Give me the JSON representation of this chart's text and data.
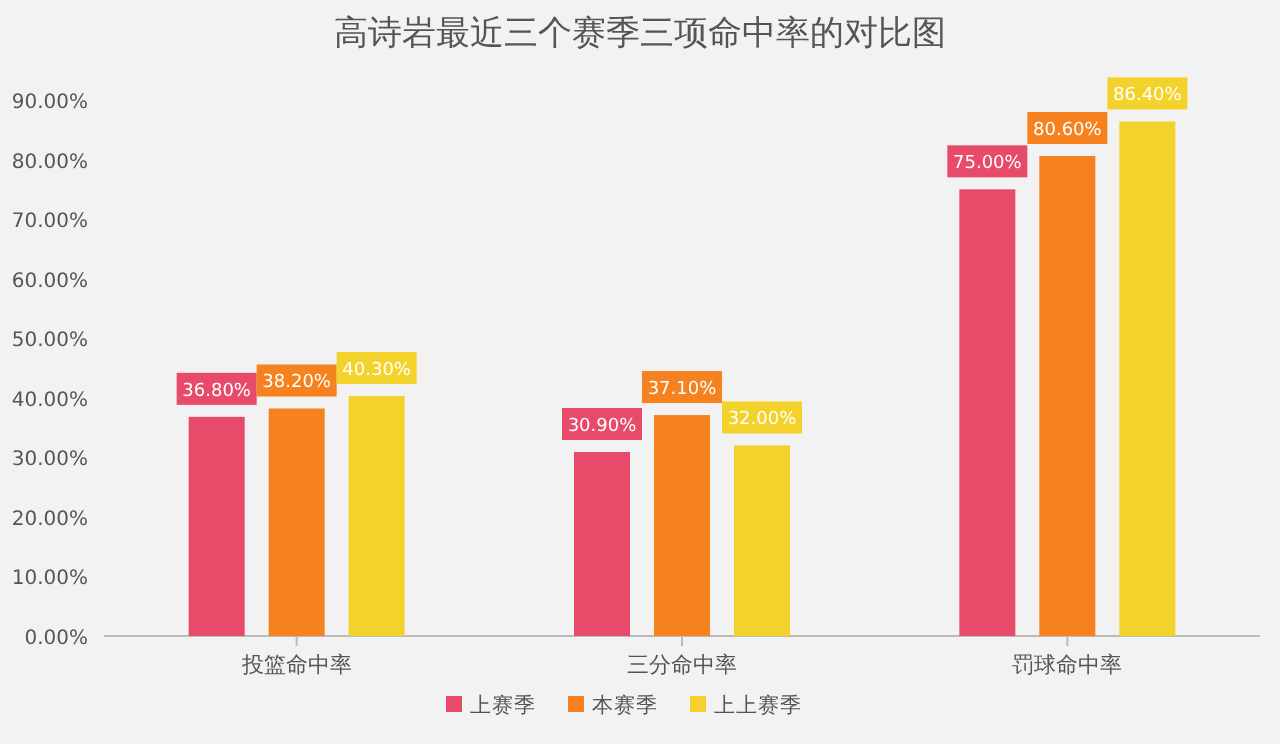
{
  "chart_data": {
    "type": "bar",
    "title": "高诗岩最近三个赛季三项命中率的对比图",
    "categories": [
      "投篮命中率",
      "三分命中率",
      "罚球命中率"
    ],
    "series": [
      {
        "name": "上赛季",
        "color": "#e84a6a",
        "values": [
          36.8,
          30.9,
          75.0
        ],
        "value_labels": [
          "36.80%",
          "30.90%",
          "75.00%"
        ]
      },
      {
        "name": "本赛季",
        "color": "#f5821f",
        "values": [
          38.2,
          37.1,
          80.6
        ],
        "value_labels": [
          "38.20%",
          "37.10%",
          "80.60%"
        ]
      },
      {
        "name": "上上赛季",
        "color": "#f3d22b",
        "values": [
          40.3,
          32.0,
          86.4
        ],
        "value_labels": [
          "40.30%",
          "32.00%",
          "86.40%"
        ]
      }
    ],
    "ylim": [
      0,
      90
    ],
    "yticks": [
      {
        "value": 0,
        "label": "0.00%"
      },
      {
        "value": 10,
        "label": "10.00%"
      },
      {
        "value": 20,
        "label": "20.00%"
      },
      {
        "value": 30,
        "label": "30.00%"
      },
      {
        "value": 40,
        "label": "40.00%"
      },
      {
        "value": 50,
        "label": "50.00%"
      },
      {
        "value": 60,
        "label": "60.00%"
      },
      {
        "value": 70,
        "label": "70.00%"
      },
      {
        "value": 80,
        "label": "80.00%"
      },
      {
        "value": 90,
        "label": "90.00%"
      }
    ],
    "legend": "bottom"
  }
}
